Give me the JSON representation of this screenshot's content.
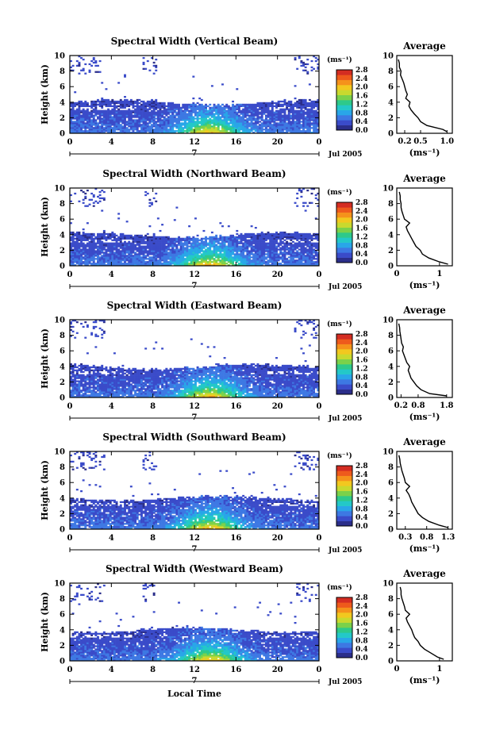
{
  "colorbar": {
    "unit": "(ms⁻¹)",
    "ticks": [
      "2.8",
      "2.4",
      "2.0",
      "1.6",
      "1.2",
      "0.8",
      "0.4",
      "0.0"
    ]
  },
  "xlabel": "Local Time",
  "date_label": "Jul 2005",
  "day_label": "7",
  "avg_title": "Average",
  "avg_xlabel": "(ms⁻¹)",
  "ylabel": "Height (km)",
  "colors": [
    "#2b2e8a",
    "#3a4bc9",
    "#3d78e3",
    "#29a6e8",
    "#23c8c8",
    "#2ec98a",
    "#7bd14a",
    "#c9d92e",
    "#f2c81f",
    "#f5921b",
    "#ee5a1c",
    "#d42d22"
  ],
  "chart_data": [
    {
      "type": "heatmap",
      "title": "Spectral Width (Vertical Beam)",
      "xlabel": "Local Time",
      "ylabel": "Height (km)",
      "x_ticks": [
        "0",
        "4",
        "8",
        "12",
        "16",
        "20",
        "0"
      ],
      "y_ticks": [
        "0",
        "2",
        "4",
        "6",
        "8",
        "10"
      ],
      "xlim": [
        0,
        24
      ],
      "ylim": [
        0,
        10
      ],
      "clim": [
        0.0,
        2.8
      ],
      "profile": {
        "title": "Average",
        "xlabel": "(ms⁻¹)",
        "x_ticks": [
          "0.2",
          "0.5",
          "1.0"
        ],
        "x_tick_values": [
          0.2,
          0.5,
          1.0
        ],
        "xlim": [
          0.05,
          1.1
        ],
        "height": [
          0.2,
          0.5,
          1.0,
          1.5,
          2.0,
          2.5,
          3.0,
          3.5,
          4.0,
          4.5,
          5.0,
          5.5,
          6.0,
          6.5,
          7.0,
          7.5,
          8.0,
          8.5,
          9.0,
          9.5
        ],
        "value": [
          1.0,
          0.92,
          0.62,
          0.5,
          0.45,
          0.38,
          0.32,
          0.28,
          0.3,
          0.22,
          0.25,
          0.22,
          0.2,
          0.18,
          0.15,
          0.12,
          0.13,
          0.1,
          0.1,
          0.08
        ]
      }
    },
    {
      "type": "heatmap",
      "title": "Spectral Width (Northward Beam)",
      "xlabel": "Local Time",
      "ylabel": "Height (km)",
      "x_ticks": [
        "0",
        "4",
        "8",
        "12",
        "16",
        "20",
        "0"
      ],
      "y_ticks": [
        "0",
        "2",
        "4",
        "6",
        "8",
        "10"
      ],
      "xlim": [
        0,
        24
      ],
      "ylim": [
        0,
        10
      ],
      "clim": [
        0.0,
        2.8
      ],
      "profile": {
        "title": "Average",
        "xlabel": "(ms⁻¹)",
        "x_ticks": [
          "0",
          "1"
        ],
        "x_tick_values": [
          0,
          1
        ],
        "xlim": [
          0,
          1.3
        ],
        "height": [
          0.2,
          0.5,
          1.0,
          1.5,
          2.0,
          2.5,
          3.0,
          3.5,
          4.0,
          4.5,
          5.0,
          5.5,
          6.0,
          6.5,
          7.0,
          7.5,
          8.0,
          8.5,
          9.0,
          9.5
        ],
        "value": [
          1.2,
          1.0,
          0.75,
          0.6,
          0.55,
          0.45,
          0.4,
          0.35,
          0.3,
          0.25,
          0.22,
          0.3,
          0.18,
          0.15,
          0.12,
          0.1,
          0.1,
          0.08,
          0.08,
          0.06
        ]
      }
    },
    {
      "type": "heatmap",
      "title": "Spectral Width (Eastward Beam)",
      "xlabel": "Local Time",
      "ylabel": "Height (km)",
      "x_ticks": [
        "0",
        "4",
        "8",
        "12",
        "16",
        "20",
        "0"
      ],
      "y_ticks": [
        "0",
        "2",
        "4",
        "6",
        "8",
        "10"
      ],
      "xlim": [
        0,
        24
      ],
      "ylim": [
        0,
        10
      ],
      "clim": [
        0.0,
        2.8
      ],
      "profile": {
        "title": "Average",
        "xlabel": "(ms⁻¹)",
        "x_ticks": [
          "0.2",
          "0.8",
          "1.8"
        ],
        "x_tick_values": [
          0.2,
          0.8,
          1.8
        ],
        "xlim": [
          0.05,
          2.0
        ],
        "height": [
          0.2,
          0.5,
          1.0,
          1.5,
          2.0,
          2.5,
          3.0,
          3.5,
          4.0,
          4.5,
          5.0,
          5.5,
          6.0,
          6.5,
          7.0,
          7.5,
          8.0,
          8.5,
          9.0,
          9.5
        ],
        "value": [
          1.8,
          1.2,
          0.9,
          0.75,
          0.65,
          0.55,
          0.5,
          0.45,
          0.5,
          0.4,
          0.35,
          0.3,
          0.25,
          0.28,
          0.22,
          0.2,
          0.18,
          0.16,
          0.15,
          0.12
        ]
      }
    },
    {
      "type": "heatmap",
      "title": "Spectral Width (Southward Beam)",
      "xlabel": "Local Time",
      "ylabel": "Height (km)",
      "x_ticks": [
        "0",
        "4",
        "8",
        "12",
        "16",
        "20",
        "0"
      ],
      "y_ticks": [
        "0",
        "2",
        "4",
        "6",
        "8",
        "10"
      ],
      "xlim": [
        0,
        24
      ],
      "ylim": [
        0,
        10
      ],
      "clim": [
        0.0,
        2.8
      ],
      "profile": {
        "title": "Average",
        "xlabel": "(ms⁻¹)",
        "x_ticks": [
          "0.3",
          "0.8",
          "1.3"
        ],
        "x_tick_values": [
          0.3,
          0.8,
          1.3
        ],
        "xlim": [
          0.1,
          1.4
        ],
        "height": [
          0.2,
          0.5,
          1.0,
          1.5,
          2.0,
          2.5,
          3.0,
          3.5,
          4.0,
          4.5,
          5.0,
          5.5,
          6.0,
          6.5,
          7.0,
          7.5,
          8.0,
          8.5,
          9.0,
          9.5
        ],
        "value": [
          1.3,
          1.1,
          0.85,
          0.7,
          0.6,
          0.55,
          0.5,
          0.45,
          0.42,
          0.38,
          0.32,
          0.4,
          0.3,
          0.28,
          0.25,
          0.22,
          0.2,
          0.18,
          0.17,
          0.15
        ]
      }
    },
    {
      "type": "heatmap",
      "title": "Spectral Width (Westward Beam)",
      "xlabel": "Local Time",
      "ylabel": "Height (km)",
      "x_ticks": [
        "0",
        "4",
        "8",
        "12",
        "16",
        "20",
        "0"
      ],
      "y_ticks": [
        "0",
        "2",
        "4",
        "6",
        "8",
        "10"
      ],
      "xlim": [
        0,
        24
      ],
      "ylim": [
        0,
        10
      ],
      "clim": [
        0.0,
        2.8
      ],
      "profile": {
        "title": "Average",
        "xlabel": "(ms⁻¹)",
        "x_ticks": [
          "0",
          "1"
        ],
        "x_tick_values": [
          0,
          1
        ],
        "xlim": [
          0,
          1.3
        ],
        "height": [
          0.2,
          0.5,
          1.0,
          1.5,
          2.0,
          2.5,
          3.0,
          3.5,
          4.0,
          4.5,
          5.0,
          5.5,
          6.0,
          6.5,
          7.0,
          7.5,
          8.0,
          8.5,
          9.0,
          9.5
        ],
        "value": [
          1.1,
          0.95,
          0.8,
          0.65,
          0.55,
          0.5,
          0.42,
          0.38,
          0.35,
          0.3,
          0.25,
          0.22,
          0.3,
          0.2,
          0.18,
          0.15,
          0.12,
          0.1,
          0.1,
          0.08
        ]
      }
    }
  ]
}
